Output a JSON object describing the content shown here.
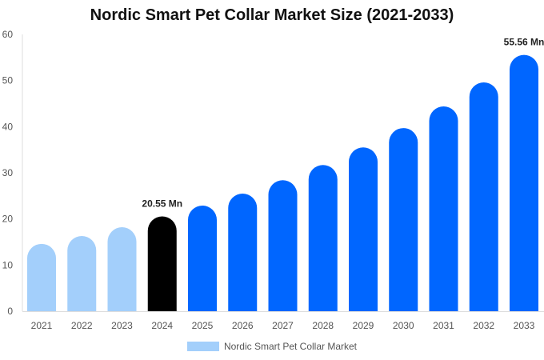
{
  "chart_data": {
    "type": "bar",
    "title": "Nordic Smart Pet Collar Market Size (2021-2033)",
    "categories": [
      "2021",
      "2022",
      "2023",
      "2024",
      "2025",
      "2026",
      "2027",
      "2028",
      "2029",
      "2030",
      "2031",
      "2032",
      "2033"
    ],
    "series": [
      {
        "name": "Nordic Smart Pet Collar Market",
        "values": [
          14.6,
          16.3,
          18.2,
          20.55,
          22.9,
          25.5,
          28.4,
          31.7,
          35.5,
          39.7,
          44.4,
          49.6,
          55.56
        ]
      }
    ],
    "data_labels": {
      "3": "20.55 Mn",
      "12": "55.56 Mn"
    },
    "ylim": [
      0,
      60
    ],
    "yticks": [
      0,
      10,
      20,
      30,
      40,
      50,
      60
    ],
    "grid": false,
    "legend": "bottom",
    "colors": {
      "historical": "#a3cffb",
      "base_year": "#000000",
      "forecast": "#0066ff"
    },
    "color_groups": [
      "historical",
      "historical",
      "historical",
      "base_year",
      "forecast",
      "forecast",
      "forecast",
      "forecast",
      "forecast",
      "forecast",
      "forecast",
      "forecast",
      "forecast"
    ]
  }
}
